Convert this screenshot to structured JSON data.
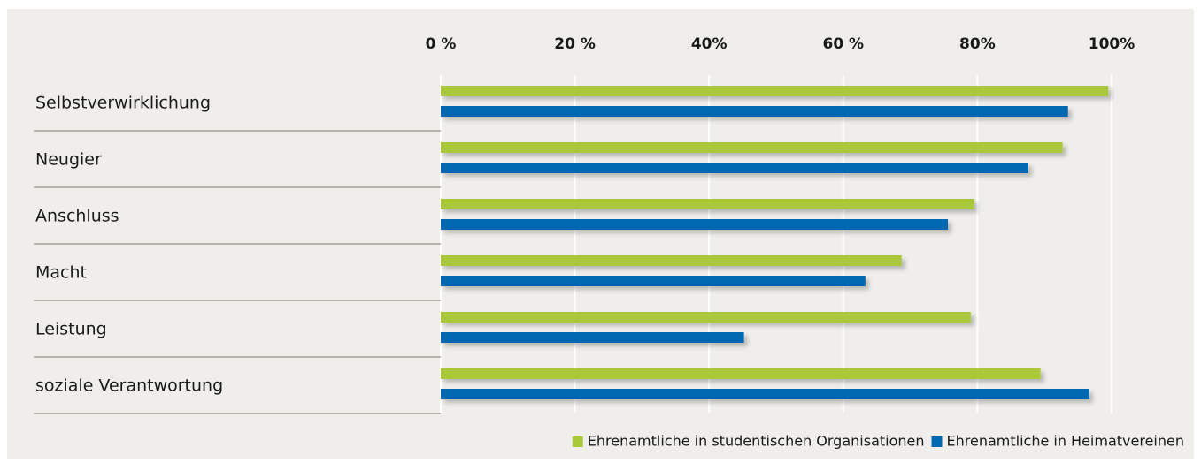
{
  "chart_data": {
    "type": "bar",
    "orientation": "horizontal",
    "categories": [
      "Selbstverwirklichung",
      "Neugier",
      "Anschluss",
      "Macht",
      "Leistung",
      "soziale Verantwortung"
    ],
    "series": [
      {
        "name": "Ehrenamtliche in studentischen Organisationen",
        "color": "#a9c83a",
        "values": [
          99.5,
          92.7,
          79.5,
          68.7,
          79,
          89.4
        ]
      },
      {
        "name": "Ehrenamtliche in Heimatvereinen",
        "color": "#0068b0",
        "values": [
          93.5,
          87.6,
          75.6,
          63.3,
          45.2,
          96.7
        ]
      }
    ],
    "xlim": [
      0,
      100
    ],
    "xticks": [
      {
        "value": 0,
        "label": "0 %"
      },
      {
        "value": 20,
        "label": "20 %"
      },
      {
        "value": 40,
        "label": "40%"
      },
      {
        "value": 60,
        "label": "60 %"
      },
      {
        "value": 80,
        "label": "80%"
      },
      {
        "value": 100,
        "label": "100%"
      }
    ],
    "grid": true,
    "legend": "bottom-right"
  }
}
